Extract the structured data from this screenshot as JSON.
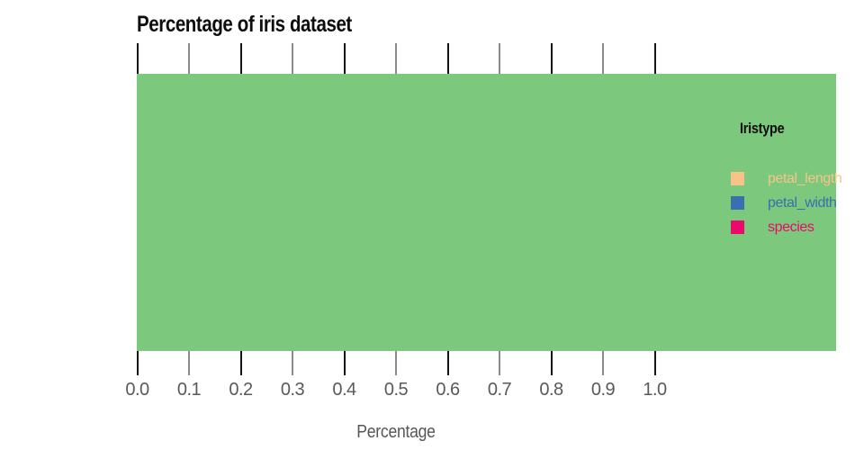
{
  "chart_data": {
    "type": "bar",
    "title": "Percentage of iris dataset",
    "xlabel": "Percentage",
    "x_tick_labels": [
      "0.0",
      "0.1",
      "0.2",
      "0.3",
      "0.4",
      "0.5",
      "0.6",
      "0.7",
      "0.8",
      "0.9",
      "1.0"
    ],
    "xlim": [
      0.0,
      1.35
    ],
    "grid": "off",
    "visible_marks": "none",
    "panel_background": "#7CC87C",
    "tick_color_major": "#141414",
    "tick_color_minor": "#8b8b8b",
    "tick_label_color": "#595959",
    "axis_label_color": "#565656",
    "legend": {
      "title": "Iristype",
      "position": "inside-right",
      "entries": [
        {
          "label": "petal_length",
          "color": "#F9C388"
        },
        {
          "label": "petal_width",
          "color": "#3A6FB0"
        },
        {
          "label": "species",
          "color": "#EA0A6B"
        }
      ]
    }
  }
}
